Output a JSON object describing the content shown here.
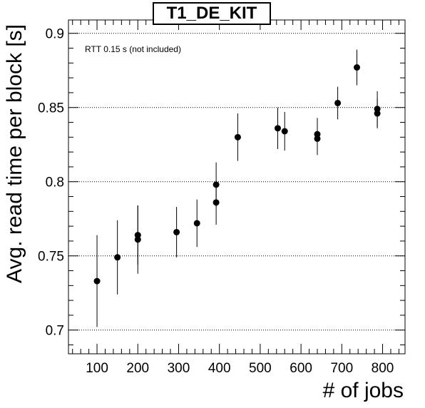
{
  "chart_data": {
    "type": "scatter",
    "title": "T1_DE_KIT",
    "annotation": "RTT 0.15 s (not included)",
    "xlabel": "# of jobs",
    "ylabel": "Avg. read time per block [s]",
    "xlim": [
      30,
      855
    ],
    "ylim": [
      0.684,
      0.909
    ],
    "x_ticks": [
      100,
      200,
      300,
      400,
      500,
      600,
      700,
      800
    ],
    "x_tick_labels": [
      "100",
      "200",
      "300",
      "400",
      "500",
      "600",
      "700",
      "800"
    ],
    "y_ticks": [
      0.7,
      0.75,
      0.8,
      0.85,
      0.9
    ],
    "y_tick_labels": [
      "0.7",
      "0.75",
      "0.8",
      "0.85",
      "0.9"
    ],
    "grid": "horizontal dotted at major y ticks",
    "marker_color": "#000000",
    "points": [
      {
        "x": 100,
        "y": 0.733,
        "err": 0.031
      },
      {
        "x": 150,
        "y": 0.749,
        "err": 0.025
      },
      {
        "x": 200,
        "y": 0.764,
        "err": 0.02
      },
      {
        "x": 200,
        "y": 0.761,
        "err": 0.023
      },
      {
        "x": 295,
        "y": 0.766,
        "err": 0.017
      },
      {
        "x": 345,
        "y": 0.772,
        "err": 0.016
      },
      {
        "x": 392,
        "y": 0.798,
        "err": 0.015
      },
      {
        "x": 392,
        "y": 0.786,
        "err": 0.015
      },
      {
        "x": 445,
        "y": 0.83,
        "err": 0.016
      },
      {
        "x": 543,
        "y": 0.836,
        "err": 0.014
      },
      {
        "x": 560,
        "y": 0.834,
        "err": 0.013
      },
      {
        "x": 640,
        "y": 0.829,
        "err": 0.011
      },
      {
        "x": 640,
        "y": 0.832,
        "err": 0.011
      },
      {
        "x": 690,
        "y": 0.853,
        "err": 0.011
      },
      {
        "x": 737,
        "y": 0.877,
        "err": 0.012
      },
      {
        "x": 787,
        "y": 0.849,
        "err": 0.012
      },
      {
        "x": 787,
        "y": 0.846,
        "err": 0.01
      }
    ]
  }
}
